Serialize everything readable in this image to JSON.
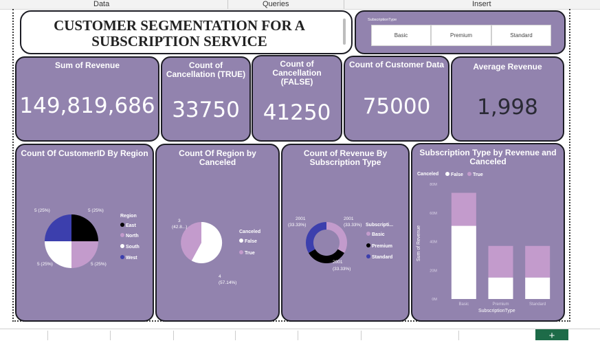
{
  "ribbon": {
    "tabs": [
      "Data",
      "Queries",
      "Insert"
    ]
  },
  "title": "CUSTOMER SEGMENTATION FOR A SUBSCRIPTION SERVICE",
  "slicer": {
    "label": "SubscriptionType",
    "options": [
      "Basic",
      "Premium",
      "Standard"
    ]
  },
  "kpis": [
    {
      "label": "Sum of Revenue",
      "value": "149,819,686"
    },
    {
      "label": "Count of Cancellation (TRUE)",
      "value": "33750"
    },
    {
      "label": "Count of Cancellation (FALSE)",
      "value": "41250"
    },
    {
      "label": "Count of Customer Data",
      "value": "75000"
    },
    {
      "label": "Average Revenue",
      "value": "1,998"
    }
  ],
  "charts": {
    "region": {
      "title": "Count Of CustomerID By Region",
      "legend_title": "Region",
      "items": [
        "East",
        "North",
        "South",
        "West"
      ],
      "labels": [
        "5 (25%)",
        "5 (25%)",
        "5 (25%)",
        "5 (25%)"
      ]
    },
    "canceled": {
      "title": "Count Of Region by Canceled",
      "legend_title": "Canceled",
      "items": [
        "False",
        "True"
      ],
      "labels": [
        "3",
        "(42.8...)",
        "4",
        "(57.14%)"
      ]
    },
    "revenue": {
      "title": "Count of Revenue By Subscription Type",
      "legend_title": "Subscripti...",
      "items": [
        "Basic",
        "Premium",
        "Standard"
      ],
      "labels": [
        "2001",
        "(33.33%)",
        "2001",
        "(33.33%)",
        "2001",
        "(33.33%)"
      ]
    },
    "bars": {
      "title": "Subscription Type by Revenue and Canceled",
      "legend_title": "Canceled",
      "items": [
        "False",
        "True"
      ],
      "ylabel": "Sum of Revenue",
      "xlabel": "SubscriptionType",
      "yticks": [
        "80M",
        "60M",
        "40M",
        "20M",
        "0M"
      ]
    }
  },
  "chart_data": [
    {
      "type": "pie",
      "title": "Count Of CustomerID By Region",
      "categories": [
        "East",
        "North",
        "South",
        "West"
      ],
      "values": [
        5,
        5,
        5,
        5
      ],
      "colors": [
        "#000000",
        "#c39bcc",
        "#ffffff",
        "#3c3fad"
      ],
      "legend": "right"
    },
    {
      "type": "pie",
      "title": "Count Of Region by Canceled",
      "categories": [
        "False",
        "True"
      ],
      "values": [
        4,
        3
      ],
      "colors": [
        "#ffffff",
        "#c39bcc"
      ],
      "legend": "right"
    },
    {
      "type": "pie",
      "title": "Count of Revenue By Subscription Type",
      "categories": [
        "Basic",
        "Premium",
        "Standard"
      ],
      "values": [
        2001,
        2001,
        2001
      ],
      "colors": [
        "#c39bcc",
        "#000000",
        "#3c3fad"
      ],
      "donut": true,
      "legend": "right"
    },
    {
      "type": "bar",
      "stacked": true,
      "title": "Subscription Type by Revenue and Canceled",
      "categories": [
        "Basic",
        "Premium",
        "Standard"
      ],
      "series": [
        {
          "name": "False",
          "values": [
            51,
            15,
            15
          ],
          "color": "#ffffff"
        },
        {
          "name": "True",
          "values": [
            23,
            22,
            22
          ],
          "color": "#c39bcc"
        }
      ],
      "xlabel": "SubscriptionType",
      "ylabel": "Sum of Revenue",
      "ylim": [
        0,
        80
      ],
      "legend": "top-left"
    }
  ]
}
